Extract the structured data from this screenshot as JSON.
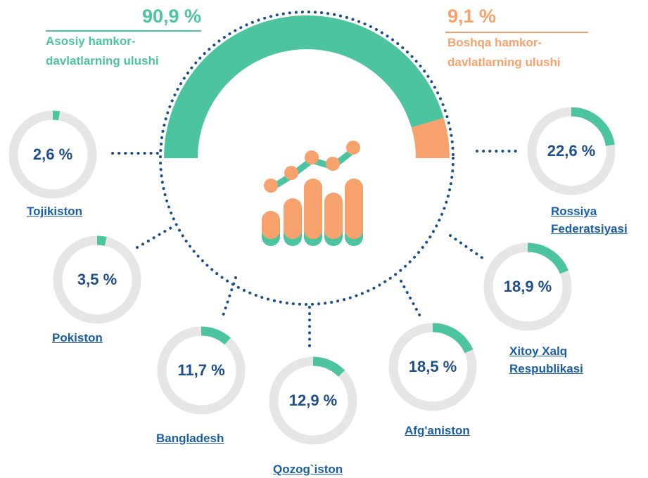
{
  "chart_data": [
    {
      "type": "semi_donut",
      "categories": [
        "Asosiy hamkor-\ndavlatlarning ulushi",
        "Boshqa hamkor-\ndavlatlarning ulushi"
      ],
      "values": [
        90.9,
        9.1
      ],
      "value_labels": [
        "90,9 %",
        "9,1 %"
      ],
      "colors": [
        "#4dc4a0",
        "#f7a26c"
      ]
    },
    {
      "type": "donut",
      "categories": [
        "Tojikiston",
        "Rossiya \nFederatsiyasi",
        "Pokiston",
        "Xitoy Xalq\nRespublikasi",
        "Bangladesh",
        "Qozog`iston",
        "Afg'aniston"
      ],
      "values": [
        2.6,
        22.6,
        3.5,
        18.9,
        11.7,
        12.9,
        18.5
      ],
      "value_labels": [
        "2,6 %",
        "22,6 %",
        "3,5 %",
        "18,9 %",
        "11,7 %",
        "12,9 %",
        "18,5 %"
      ],
      "color": "#4dc4a0",
      "track_color": "#e6e6e6"
    }
  ]
}
